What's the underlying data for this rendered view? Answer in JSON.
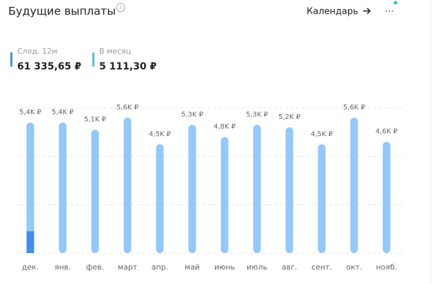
{
  "header": {
    "title": "Будущие выплаты",
    "link": "Календарь",
    "menu": "···"
  },
  "stats": [
    {
      "label": "След. 12м",
      "value": "61 335,65 ₽",
      "color": "#3d8ef0"
    },
    {
      "label": "В месяц",
      "value": "5 111,30 ₽",
      "color": "#4cc2d6"
    }
  ],
  "chart_data": {
    "type": "bar",
    "categories": [
      "дек.",
      "янв.",
      "фев.",
      "март",
      "апр.",
      "май",
      "июнь",
      "июль",
      "авг.",
      "сент.",
      "окт.",
      "нояб."
    ],
    "values": [
      5.4,
      5.4,
      5.1,
      5.6,
      4.5,
      5.3,
      4.8,
      5.3,
      5.2,
      4.5,
      5.6,
      4.6
    ],
    "value_labels": [
      "5,4K ₽",
      "5,4K ₽",
      "5,1K ₽",
      "5,6K ₽",
      "4,5K ₽",
      "5,3K ₽",
      "4,8K ₽",
      "5,3K ₽",
      "5,2K ₽",
      "4,5K ₽",
      "5,6K ₽",
      "4,6K ₽"
    ],
    "color": "#92c8fa",
    "highlight": {
      "category": "дек.",
      "value": 0.9,
      "color": "#3d8ef0"
    },
    "ylim": [
      0,
      6
    ],
    "yticks": [
      0,
      2,
      4,
      6
    ],
    "grid": true
  }
}
